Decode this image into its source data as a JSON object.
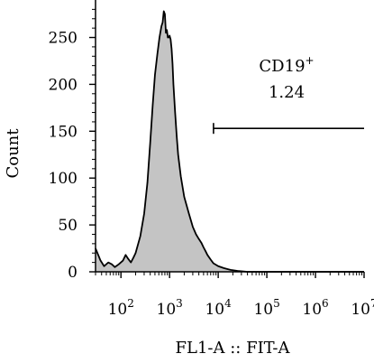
{
  "chart_data": {
    "type": "area",
    "title": "",
    "xlabel": "FL1-A :: FIT-A",
    "ylabel": "Count",
    "x_scale": "log",
    "xlim": [
      30,
      10000000
    ],
    "ylim": [
      0,
      290
    ],
    "grid": false,
    "legend": "none",
    "fill_color": "#c4c4c4",
    "line_color": "#000000",
    "x_ticks": [
      {
        "value": 100,
        "base": "10",
        "exp": "2"
      },
      {
        "value": 1000,
        "base": "10",
        "exp": "3"
      },
      {
        "value": 10000,
        "base": "10",
        "exp": "4"
      },
      {
        "value": 100000,
        "base": "10",
        "exp": "5"
      },
      {
        "value": 1000000,
        "base": "10",
        "exp": "6"
      },
      {
        "value": 10000000,
        "base": "10",
        "exp": "7"
      }
    ],
    "y_ticks": [
      {
        "value": 0,
        "label": "0"
      },
      {
        "value": 50,
        "label": "50"
      },
      {
        "value": 100,
        "label": "100"
      },
      {
        "value": 150,
        "label": "150"
      },
      {
        "value": 200,
        "label": "200"
      },
      {
        "value": 250,
        "label": "250"
      }
    ],
    "series": [
      {
        "x": [
          30,
          38,
          45,
          55,
          65,
          75,
          90,
          110,
          125,
          140,
          160,
          180,
          200,
          250,
          300,
          350,
          400,
          450,
          500,
          560,
          620,
          680,
          720,
          760,
          800,
          840,
          880,
          920,
          960,
          1000,
          1050,
          1100,
          1150,
          1200,
          1300,
          1400,
          1500,
          1700,
          2000,
          2500,
          3000,
          3500,
          4000,
          4500,
          5000,
          5500,
          6000,
          7000,
          8000,
          10000,
          13000,
          18000,
          25000,
          40000,
          100000,
          1000000,
          10000000
        ],
        "y": [
          25,
          12,
          6,
          10,
          8,
          5,
          8,
          12,
          18,
          14,
          10,
          15,
          20,
          38,
          62,
          95,
          138,
          178,
          210,
          232,
          250,
          262,
          266,
          278,
          275,
          255,
          258,
          250,
          250,
          252,
          248,
          238,
          222,
          200,
          170,
          145,
          125,
          102,
          80,
          62,
          48,
          40,
          35,
          31,
          26,
          22,
          18,
          13,
          9,
          6,
          4,
          2,
          1,
          0,
          0,
          0,
          0
        ]
      }
    ],
    "annotations": [
      {
        "type": "gate",
        "x_start": 8000,
        "x_end": 10000000,
        "y": 153,
        "label": "CD19",
        "label_sup": "+",
        "value": "1.24"
      }
    ]
  }
}
